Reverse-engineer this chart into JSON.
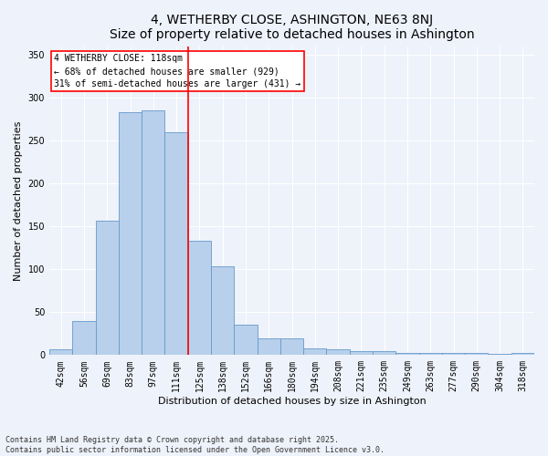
{
  "title": "4, WETHERBY CLOSE, ASHINGTON, NE63 8NJ",
  "subtitle": "Size of property relative to detached houses in Ashington",
  "xlabel": "Distribution of detached houses by size in Ashington",
  "ylabel": "Number of detached properties",
  "categories": [
    "42sqm",
    "56sqm",
    "69sqm",
    "83sqm",
    "97sqm",
    "111sqm",
    "125sqm",
    "138sqm",
    "152sqm",
    "166sqm",
    "180sqm",
    "194sqm",
    "208sqm",
    "221sqm",
    "235sqm",
    "249sqm",
    "263sqm",
    "277sqm",
    "290sqm",
    "304sqm",
    "318sqm"
  ],
  "values": [
    7,
    40,
    157,
    283,
    285,
    260,
    133,
    103,
    35,
    19,
    20,
    8,
    7,
    5,
    5,
    3,
    3,
    3,
    3,
    1,
    3
  ],
  "bar_color": "#b8d0eb",
  "bar_edge_color": "#6699cc",
  "vline_x": 5.5,
  "vline_color": "red",
  "annotation_text": "4 WETHERBY CLOSE: 118sqm\n← 68% of detached houses are smaller (929)\n31% of semi-detached houses are larger (431) →",
  "annotation_box_color": "white",
  "annotation_box_edge_color": "red",
  "annotation_fontsize": 7,
  "title_fontsize": 10,
  "subtitle_fontsize": 9,
  "xlabel_fontsize": 8,
  "ylabel_fontsize": 8,
  "tick_fontsize": 7,
  "footnote": "Contains HM Land Registry data © Crown copyright and database right 2025.\nContains public sector information licensed under the Open Government Licence v3.0.",
  "bg_color": "#eef2fa",
  "grid_color": "white",
  "ylim": [
    0,
    360
  ]
}
